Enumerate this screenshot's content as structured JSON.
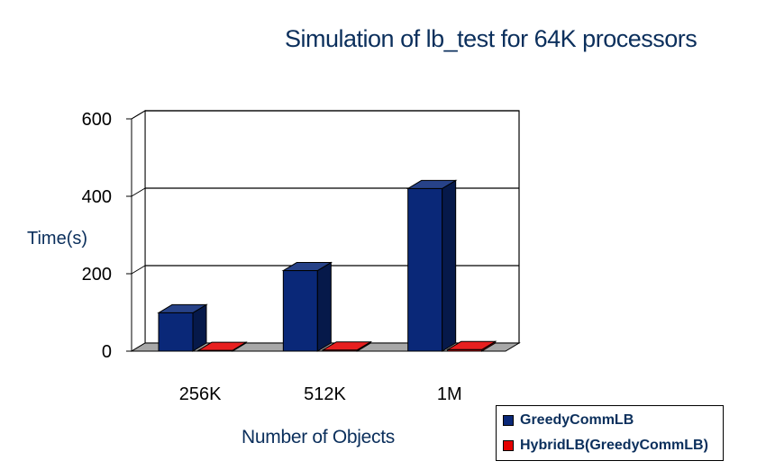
{
  "chart_data": {
    "type": "bar",
    "title": "Simulation of lb_test for 64K processors",
    "xlabel": "Number of Objects",
    "ylabel": "Time(s)",
    "categories": [
      "256K",
      "512K",
      "1M"
    ],
    "series": [
      {
        "name": "GreedyCommLB",
        "values": [
          99,
          208,
          420
        ],
        "color": "#0a2878"
      },
      {
        "name": "HybridLB(GreedyCommLB)",
        "values": [
          2,
          3,
          4
        ],
        "color": "#e40000"
      }
    ],
    "ylim": [
      0,
      600
    ],
    "yticks": [
      "0",
      "200",
      "400",
      "600"
    ],
    "grid": true,
    "legend_position": "bottom-right",
    "style": "3d-clustered-bar"
  }
}
